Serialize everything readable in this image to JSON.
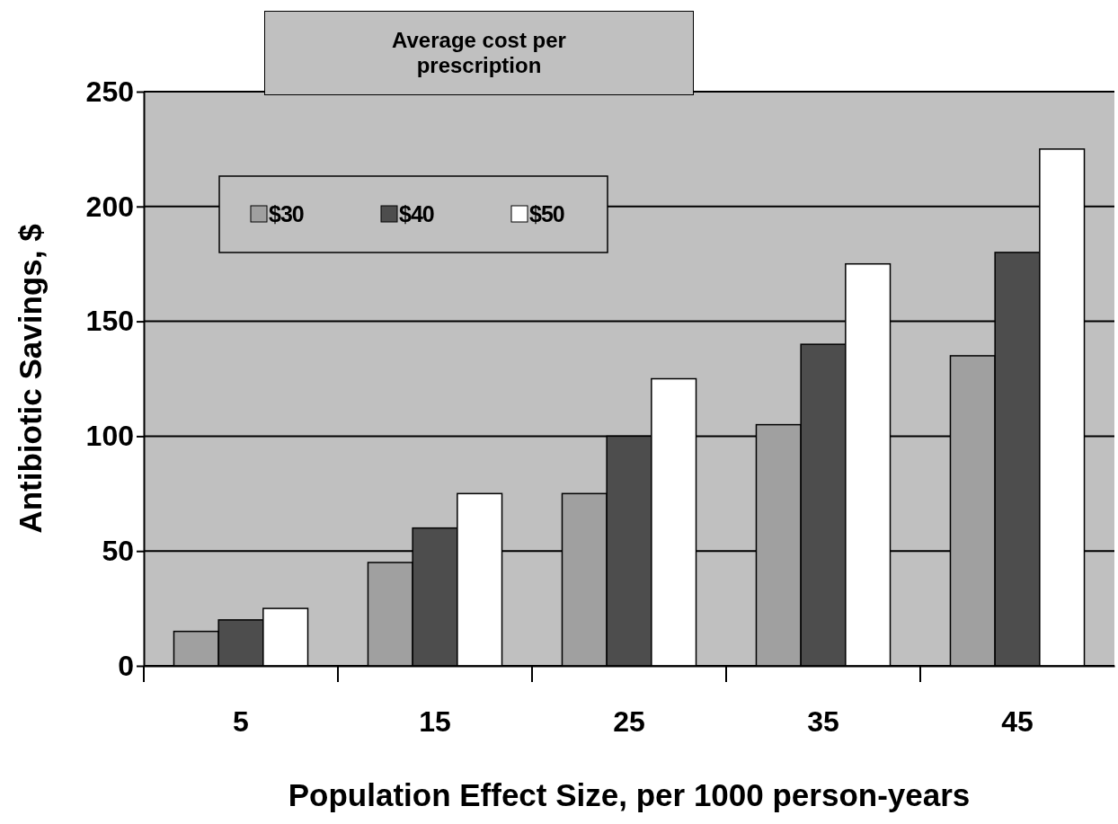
{
  "chart_data": {
    "type": "bar",
    "title": "Average cost per prescription",
    "xlabel": "Population Effect Size, per 1000 person-years",
    "ylabel": "Antibiotic Savings, $",
    "categories": [
      "5",
      "15",
      "25",
      "35",
      "45"
    ],
    "series": [
      {
        "name": "$30",
        "color": "#a0a0a0",
        "values": [
          15,
          45,
          75,
          105,
          135
        ]
      },
      {
        "name": "$40",
        "color": "#4d4d4d",
        "values": [
          20,
          60,
          100,
          140,
          180
        ]
      },
      {
        "name": "$50",
        "color": "#ffffff",
        "values": [
          25,
          75,
          125,
          175,
          225
        ]
      }
    ],
    "ylim": [
      0,
      250
    ],
    "yticks": [
      0,
      50,
      100,
      150,
      200,
      250
    ],
    "grid": "y",
    "legend": "top left"
  }
}
